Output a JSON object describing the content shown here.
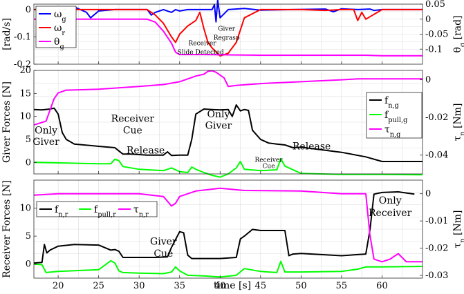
{
  "chart_data": [
    {
      "type": "line",
      "xlim": [
        17,
        65
      ],
      "ylim_left": [
        -0.2,
        0.02
      ],
      "ylim_right": [
        -0.15,
        0.05
      ],
      "ylabel": "[rad/s]",
      "ylabel_right": "θg [rad]",
      "ylabel_right_base": "θ",
      "ylabel_right_sub": "g",
      "ylabel_right_unit": " [rad]",
      "yticks_left": [
        0,
        -0.1,
        -0.2
      ],
      "yticks_left_labels": [
        "0",
        "-0.1",
        "-0.2"
      ],
      "yticks_right": [
        0.05,
        0,
        -0.05,
        -0.1
      ],
      "yticks_right_labels": [
        "0.05",
        "0",
        "-0.05",
        "-0.1"
      ],
      "grid": true,
      "legend_location": "top-left",
      "series": [
        {
          "name": "ωg",
          "base": "ω",
          "sub": "g",
          "color": "#0000ff",
          "axis": "left",
          "x": [
            17,
            20,
            21,
            22,
            23.5,
            24,
            25,
            27,
            31,
            31.5,
            32,
            33,
            34,
            34.5,
            35,
            36,
            36.5,
            37,
            38,
            39,
            39.3,
            39.5,
            39.7,
            40,
            41,
            43,
            45,
            49,
            53,
            54,
            55,
            57,
            58.5,
            59,
            60,
            62,
            65
          ],
          "y": [
            0,
            -0.002,
            0.003,
            0.01,
            -0.01,
            -0.03,
            -0.005,
            0,
            0,
            -0.02,
            -0.01,
            0,
            -0.01,
            0,
            -0.005,
            0,
            0,
            0,
            0,
            0,
            0.018,
            -0.045,
            0.035,
            -0.03,
            0,
            0.004,
            -0.002,
            0,
            0.002,
            -0.008,
            0.003,
            0,
            0.002,
            -0.003,
            0,
            0,
            0
          ]
        },
        {
          "name": "ωr",
          "base": "ω",
          "sub": "r",
          "color": "#ff0000",
          "axis": "left",
          "x": [
            17,
            24,
            27,
            31,
            32,
            33,
            34,
            34.5,
            35,
            36,
            37,
            37.5,
            38,
            38.5,
            39,
            40,
            41,
            42,
            43,
            45,
            50,
            53,
            55,
            56.5,
            57,
            57.5,
            58,
            60,
            65
          ],
          "y": [
            0,
            0,
            0,
            0,
            -0.02,
            -0.05,
            -0.1,
            -0.12,
            -0.09,
            -0.06,
            -0.04,
            -0.01,
            -0.07,
            -0.12,
            -0.14,
            -0.17,
            -0.16,
            -0.12,
            -0.03,
            0,
            0,
            -0.003,
            0,
            0,
            -0.04,
            -0.01,
            -0.035,
            0,
            0
          ]
        },
        {
          "name": "θg",
          "base": "θ",
          "sub": "g",
          "color": "#ff00ff",
          "axis": "right",
          "x": [
            17,
            31,
            32,
            33,
            34,
            34.5,
            35,
            38,
            41,
            45,
            50,
            58,
            60,
            65
          ],
          "y": [
            0,
            0,
            -0.01,
            -0.04,
            -0.08,
            -0.11,
            -0.118,
            -0.118,
            -0.119,
            -0.12,
            -0.12,
            -0.12,
            -0.122,
            -0.122
          ]
        }
      ],
      "annotations": [
        {
          "text": "Receiver",
          "x": 37.8,
          "y": -0.13
        },
        {
          "text": "Slide Detected",
          "x": 37.6,
          "y": -0.163
        },
        {
          "text": "Giver",
          "x": 40.8,
          "y": -0.077
        },
        {
          "text": "Regrasp",
          "x": 40.8,
          "y": -0.11
        }
      ]
    },
    {
      "type": "line",
      "xlim": [
        17,
        65
      ],
      "ylim_left": [
        -2.5,
        20
      ],
      "ylim_right": [
        -0.05,
        0.005
      ],
      "ylabel": "Giver Forces [N]",
      "ylabel_right": "τn [Nm]",
      "ylabel_right_base": "τ",
      "ylabel_right_sub": "n",
      "ylabel_right_unit": " [Nm]",
      "yticks_left": [
        20,
        15,
        10,
        5,
        0
      ],
      "yticks_left_labels": [
        "20",
        "15",
        "10",
        "5",
        "0"
      ],
      "yticks_right": [
        0,
        -0.02,
        -0.04
      ],
      "yticks_right_labels": [
        "0",
        "-0.02",
        "-0.04"
      ],
      "grid": true,
      "legend_location": "right",
      "series": [
        {
          "name": "fn,g",
          "base": "f",
          "sub": "n,g",
          "color": "#000000",
          "axis": "left",
          "x": [
            17,
            18,
            19,
            19.5,
            20,
            20.5,
            21,
            22,
            25,
            27,
            27.5,
            28,
            29,
            31,
            33,
            33.5,
            34,
            35,
            36,
            36.5,
            37,
            38,
            39,
            40,
            41,
            41.5,
            42,
            42.5,
            43,
            43.5,
            44,
            45,
            46,
            47,
            48,
            49,
            50,
            55,
            58,
            60,
            65
          ],
          "y": [
            11.5,
            11.4,
            11.6,
            11.8,
            10.5,
            6.5,
            5,
            4,
            3.5,
            3.2,
            2.5,
            1.8,
            1.8,
            1.6,
            1.6,
            2.3,
            1.5,
            1.6,
            1.6,
            5,
            10.5,
            11.6,
            11.5,
            11.4,
            11.5,
            10,
            12.5,
            11.2,
            11.5,
            11.3,
            7,
            5,
            4.2,
            4,
            3.8,
            3.2,
            3.3,
            2.2,
            1.2,
            0.2,
            0.2
          ]
        },
        {
          "name": "fpull,g",
          "base": "f",
          "sub": "pull,g",
          "color": "#00ff00",
          "axis": "left",
          "x": [
            17,
            20,
            25,
            26.5,
            27,
            27.5,
            28,
            30,
            33,
            34,
            35,
            36,
            36.5,
            37,
            38,
            39,
            40,
            41,
            42,
            42.5,
            43,
            45,
            47,
            47.5,
            48,
            50,
            55,
            60,
            65
          ],
          "y": [
            0,
            -0.1,
            -0.3,
            -0.3,
            0.7,
            0.4,
            -0.9,
            -1.5,
            -1.8,
            -1.2,
            -2,
            -2.2,
            -1,
            -1.5,
            -2.2,
            -2.8,
            -3.2,
            -2.5,
            -1.2,
            0.2,
            -1.5,
            -1.8,
            -1.6,
            0.8,
            -0.8,
            -2.4,
            -2.6,
            -2.6,
            -2.7
          ]
        },
        {
          "name": "τn,g",
          "base": "τ",
          "sub": "n,g",
          "color": "#ff00ff",
          "axis": "right",
          "x": [
            17,
            18.5,
            19,
            19.5,
            20,
            21,
            25,
            30,
            33,
            35,
            37,
            38,
            38.5,
            39,
            39.5,
            40,
            40.5,
            41,
            42,
            45,
            50,
            55,
            57,
            60,
            65
          ],
          "y": [
            -0.024,
            -0.022,
            -0.016,
            -0.01,
            -0.007,
            -0.0055,
            -0.005,
            -0.0035,
            -0.0025,
            -0.001,
            0.002,
            0.003,
            0.0045,
            0.0048,
            0.004,
            0.0025,
            0.001,
            -0.0035,
            -0.003,
            -0.002,
            -0.001,
            0,
            0.0005,
            0.0005,
            0.0005
          ]
        }
      ],
      "annotations": [
        {
          "text": "Only",
          "x": 18.5,
          "y": 6.3
        },
        {
          "text": "Giver",
          "x": 18.5,
          "y": 3.8
        },
        {
          "text": "Receiver",
          "x": 29.2,
          "y": 8.8
        },
        {
          "text": "Cue",
          "x": 29.2,
          "y": 6.3
        },
        {
          "text": "Release",
          "x": 30.8,
          "y": 1.9
        },
        {
          "text": "Only",
          "x": 39.8,
          "y": 9.8
        },
        {
          "text": "Giver",
          "x": 39.8,
          "y": 7.3
        },
        {
          "text": "Receiver",
          "x": 46,
          "y": 0.1
        },
        {
          "text": "Cue",
          "x": 46,
          "y": -1.2
        },
        {
          "text": "Release",
          "x": 51.3,
          "y": 2.8
        }
      ]
    },
    {
      "type": "line",
      "xlim": [
        17,
        65
      ],
      "ylim_left": [
        -2.5,
        15
      ],
      "ylim_right": [
        -0.031,
        0.005
      ],
      "xlabel": "time [s]",
      "ylabel": "Receiver Forces [N]",
      "ylabel_right": "τn [Nm]",
      "ylabel_right_base": "τ",
      "ylabel_right_sub": "n",
      "ylabel_right_unit": " [Nm]",
      "xticks": [
        20,
        25,
        30,
        35,
        40,
        45,
        50,
        55,
        60
      ],
      "xticks_labels": [
        "20",
        "25",
        "30",
        "35",
        "40",
        "45",
        "50",
        "55",
        "60"
      ],
      "yticks_left": [
        10,
        5,
        0
      ],
      "yticks_left_labels": [
        "10",
        "5",
        "0"
      ],
      "yticks_right": [
        0,
        -0.01,
        -0.02,
        -0.03
      ],
      "yticks_right_labels": [
        "0",
        "-0.01",
        "-0.02",
        "-0.03"
      ],
      "grid": true,
      "legend_location": "upper-left",
      "series": [
        {
          "name": "fn,r",
          "base": "f",
          "sub": "n,r",
          "color": "#000000",
          "axis": "left",
          "x": [
            17,
            18,
            18.3,
            18.6,
            19,
            20,
            22,
            25,
            26.5,
            27,
            27.5,
            28,
            30,
            32,
            33.5,
            34,
            35,
            35.5,
            36,
            36.5,
            37,
            40,
            42,
            42.5,
            43,
            44,
            45,
            46,
            47,
            48,
            48.5,
            49,
            50,
            55,
            58,
            58.5,
            59,
            60,
            62,
            64
          ],
          "y": [
            0.2,
            0.3,
            3.5,
            2,
            2.5,
            3.2,
            3.5,
            3.4,
            2.5,
            2.6,
            2.3,
            1.2,
            1.2,
            1.2,
            1.3,
            3,
            5.8,
            5.6,
            1.6,
            1,
            1,
            1,
            1.2,
            4.5,
            5,
            6.2,
            6,
            6,
            6,
            6,
            1.5,
            1.8,
            1.9,
            1.5,
            1.8,
            6,
            12.5,
            12.8,
            12.9,
            12.5
          ]
        },
        {
          "name": "fpull,r",
          "base": "f",
          "sub": "pull,r",
          "color": "#00ff00",
          "axis": "left",
          "x": [
            17,
            18,
            18.5,
            20,
            25,
            26.5,
            27,
            27.5,
            28,
            30,
            33,
            34,
            34.5,
            35,
            36,
            38,
            40,
            42,
            43,
            45,
            47,
            47.5,
            48,
            50,
            55,
            57,
            58,
            58.5,
            60,
            65
          ],
          "y": [
            0,
            -0.1,
            -1.5,
            -1.3,
            -1,
            0.6,
            0.2,
            -1.2,
            -1.5,
            -1.6,
            -1.7,
            -1.4,
            -0.5,
            -1.2,
            -2,
            -2.1,
            -2.3,
            -2,
            -0.8,
            -1.3,
            -1.5,
            0.5,
            -1.4,
            -1.4,
            -1.3,
            -0.9,
            -0.5,
            -0.5,
            -0.5,
            -0.4
          ]
        },
        {
          "name": "τn,r",
          "base": "τ",
          "sub": "n,r",
          "color": "#ff00ff",
          "axis": "right",
          "x": [
            17,
            20,
            25,
            30,
            33,
            34,
            34.5,
            35,
            37,
            40,
            43,
            50,
            55,
            58,
            58.5,
            59,
            60,
            61,
            62,
            63,
            64,
            65
          ],
          "y": [
            -0.0005,
            0,
            0,
            0,
            -0.001,
            -0.0045,
            -0.0035,
            -0.001,
            0.001,
            0.002,
            0.0012,
            0.001,
            0,
            0,
            -0.015,
            -0.024,
            -0.025,
            -0.024,
            -0.022,
            -0.025,
            -0.025,
            -0.025
          ]
        }
      ],
      "annotations": [
        {
          "text": "Giver",
          "x": 33,
          "y": 3.5
        },
        {
          "text": "Cue",
          "x": 33,
          "y": 1.3
        },
        {
          "text": "Only",
          "x": 61,
          "y": 10.8
        },
        {
          "text": "Receiver",
          "x": 61,
          "y": 8.6
        }
      ]
    }
  ]
}
